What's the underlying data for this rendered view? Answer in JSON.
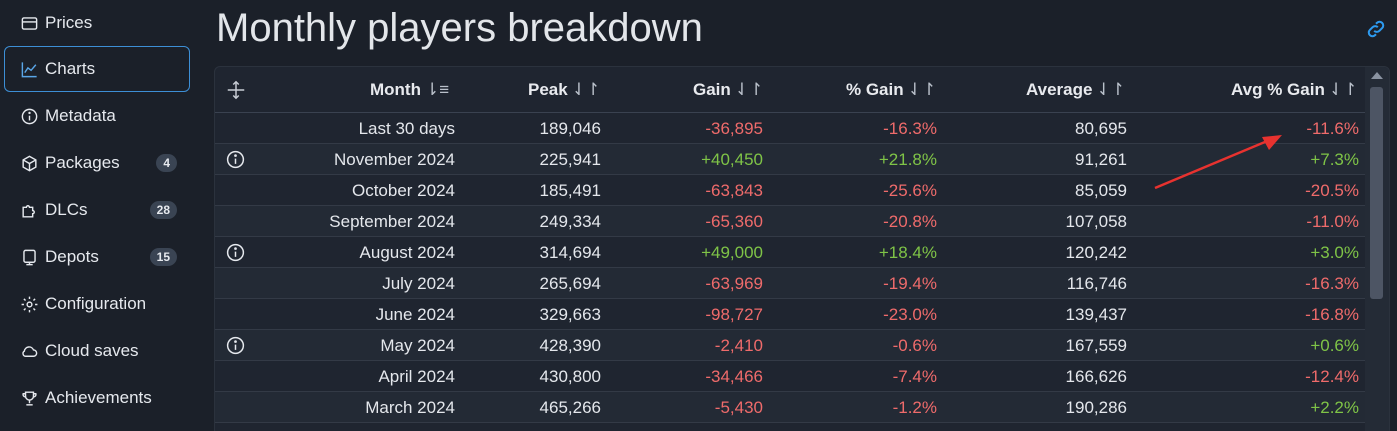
{
  "sidebar": {
    "items": [
      {
        "label": "Prices",
        "icon": "prices-icon"
      },
      {
        "label": "Charts",
        "icon": "chart-icon",
        "active": true
      },
      {
        "label": "Metadata",
        "icon": "info-icon"
      },
      {
        "label": "Packages",
        "icon": "package-icon",
        "badge": "4"
      },
      {
        "label": "DLCs",
        "icon": "dlc-icon",
        "badge": "28"
      },
      {
        "label": "Depots",
        "icon": "depot-icon",
        "badge": "15"
      },
      {
        "label": "Configuration",
        "icon": "gear-icon"
      },
      {
        "label": "Cloud saves",
        "icon": "cloud-icon"
      },
      {
        "label": "Achievements",
        "icon": "trophy-icon"
      }
    ]
  },
  "main": {
    "title": "Monthly players breakdown",
    "columns": {
      "month": "Month",
      "peak": "Peak",
      "gain": "Gain",
      "pct_gain": "% Gain",
      "average": "Average",
      "avg_pct_gain": "Avg % Gain"
    },
    "rows": [
      {
        "month": "Last 30 days",
        "peak": "189,046",
        "gain": "-36,895",
        "pct_gain": "-16.3%",
        "average": "80,695",
        "avg_pct_gain": "-11.6%",
        "info": false
      },
      {
        "month": "November 2024",
        "peak": "225,941",
        "gain": "+40,450",
        "pct_gain": "+21.8%",
        "average": "91,261",
        "avg_pct_gain": "+7.3%",
        "info": true
      },
      {
        "month": "October 2024",
        "peak": "185,491",
        "gain": "-63,843",
        "pct_gain": "-25.6%",
        "average": "85,059",
        "avg_pct_gain": "-20.5%",
        "info": false
      },
      {
        "month": "September 2024",
        "peak": "249,334",
        "gain": "-65,360",
        "pct_gain": "-20.8%",
        "average": "107,058",
        "avg_pct_gain": "-11.0%",
        "info": false
      },
      {
        "month": "August 2024",
        "peak": "314,694",
        "gain": "+49,000",
        "pct_gain": "+18.4%",
        "average": "120,242",
        "avg_pct_gain": "+3.0%",
        "info": true
      },
      {
        "month": "July 2024",
        "peak": "265,694",
        "gain": "-63,969",
        "pct_gain": "-19.4%",
        "average": "116,746",
        "avg_pct_gain": "-16.3%",
        "info": false
      },
      {
        "month": "June 2024",
        "peak": "329,663",
        "gain": "-98,727",
        "pct_gain": "-23.0%",
        "average": "139,437",
        "avg_pct_gain": "-16.8%",
        "info": false
      },
      {
        "month": "May 2024",
        "peak": "428,390",
        "gain": "-2,410",
        "pct_gain": "-0.6%",
        "average": "167,559",
        "avg_pct_gain": "+0.6%",
        "info": true
      },
      {
        "month": "April 2024",
        "peak": "430,800",
        "gain": "-34,466",
        "pct_gain": "-7.4%",
        "average": "166,626",
        "avg_pct_gain": "-12.4%",
        "info": false
      },
      {
        "month": "March 2024",
        "peak": "465,266",
        "gain": "-5,430",
        "pct_gain": "-1.2%",
        "average": "190,286",
        "avg_pct_gain": "+2.2%",
        "info": false
      }
    ]
  },
  "colors": {
    "positive": "#7fc447",
    "negative": "#ef6b6b",
    "accent": "#3d8fd6",
    "annotation_arrow": "#e8322f"
  }
}
